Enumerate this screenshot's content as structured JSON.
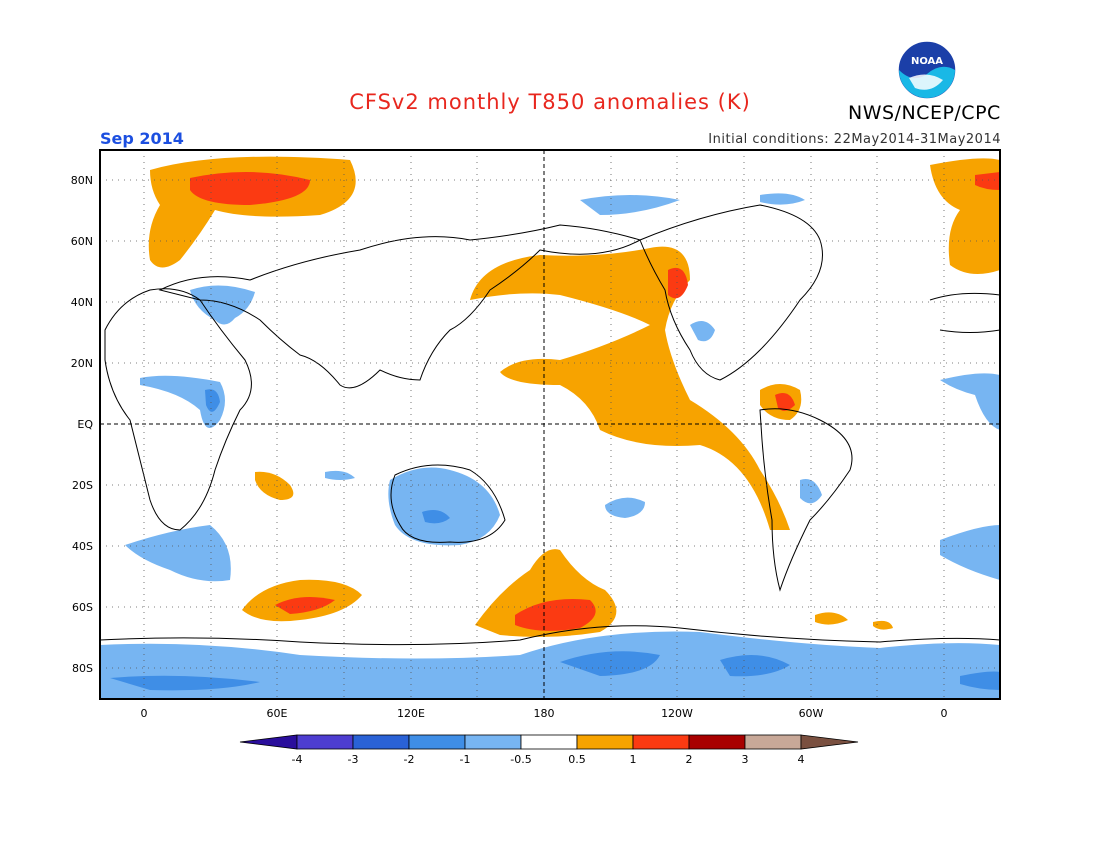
{
  "header": {
    "title": "CFSv2 monthly T850 anomalies (K)",
    "target_month": "Sep 2014",
    "initial_conditions": "Initial conditions: 22May2014-31May2014",
    "agency": "NWS/NCEP/CPC",
    "logo_text": "NOAA"
  },
  "map": {
    "lat_labels": [
      "80N",
      "60N",
      "40N",
      "20N",
      "EQ",
      "20S",
      "40S",
      "60S",
      "80S"
    ],
    "lon_labels": [
      "0",
      "60E",
      "120E",
      "180",
      "120W",
      "60W",
      "0"
    ],
    "colors": {
      "warm_0_5_1": "#f7a300",
      "warm_1_2": "#fb3a12",
      "warm_2_3": "#a80000",
      "cool_m1_m0_5": "#77b5f2",
      "cool_m2_m1": "#3f8ee6",
      "cool_m3_m2": "#1d61d0",
      "cool_m4_m3": "#4236c8",
      "land_outline": "#000000"
    }
  },
  "legend": {
    "tick_labels": [
      "-4",
      "-3",
      "-2",
      "-1",
      "-0.5",
      "0.5",
      "1",
      "2",
      "3",
      "4"
    ],
    "colors": [
      "#2a0e9c",
      "#4d3dd0",
      "#2a62d6",
      "#3f8ee6",
      "#77b5f2",
      "#ffffff",
      "#f7a300",
      "#fb3a12",
      "#a80000",
      "#c8a898",
      "#7a5040"
    ]
  }
}
